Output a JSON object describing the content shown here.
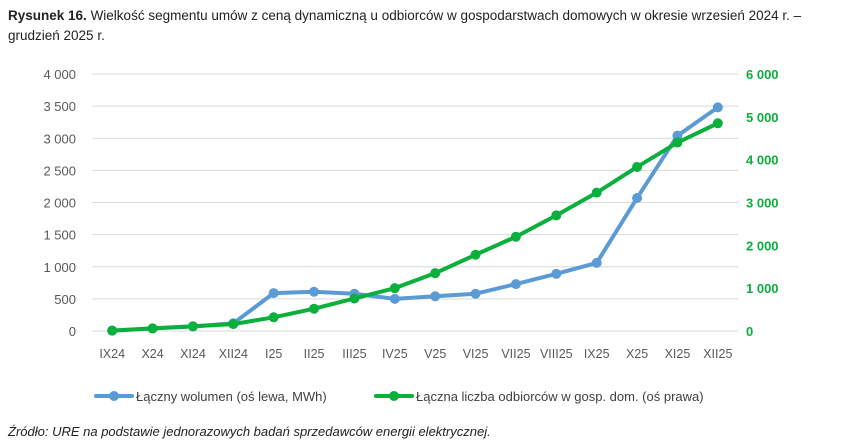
{
  "caption": {
    "label": "Rysunek 16.",
    "text": "Wielkość segmentu umów z ceną dynamiczną u odbiorców w gospodarstwach domowych w okresie wrzesień 2024 r. – grudzień 2025 r."
  },
  "source": "Źródło: URE na podstawie jednorazowych badań sprzedawców energii elektrycznej.",
  "colors": {
    "volume": "#5B9BD5",
    "customers": "#0AAF3C",
    "grid": "#D9D9D9",
    "axis_left": "#595959"
  },
  "chart_data": {
    "type": "line",
    "categories": [
      "IX24",
      "X24",
      "XI24",
      "XII24",
      "I25",
      "II25",
      "III25",
      "IV25",
      "V25",
      "VI25",
      "VII25",
      "VIII25",
      "IX25",
      "X25",
      "XI25",
      "XII25"
    ],
    "series": [
      {
        "name": "Łączny wolumen (oś lewa, MWh)",
        "axis": "left",
        "values": [
          5,
          40,
          70,
          120,
          590,
          610,
          580,
          500,
          540,
          580,
          730,
          890,
          1060,
          2070,
          3040,
          3480
        ]
      },
      {
        "name": "Łączna liczba odbiorców w gosp. dom. (oś prawa)",
        "axis": "right",
        "values": [
          10,
          60,
          110,
          160,
          320,
          520,
          760,
          1000,
          1350,
          1780,
          2200,
          2700,
          3230,
          3830,
          4400,
          4850
        ]
      }
    ],
    "y_left": {
      "min": 0,
      "max": 4000,
      "step": 500,
      "ticks": [
        "0",
        "500",
        "1 000",
        "1 500",
        "2 000",
        "2 500",
        "3 000",
        "3 500",
        "4 000"
      ]
    },
    "y_right": {
      "min": 0,
      "max": 6000,
      "step": 1000,
      "ticks": [
        "0",
        "1 000",
        "2 000",
        "3 000",
        "4 000",
        "5 000",
        "6 000"
      ]
    },
    "grid": true,
    "legend": "bottom"
  }
}
